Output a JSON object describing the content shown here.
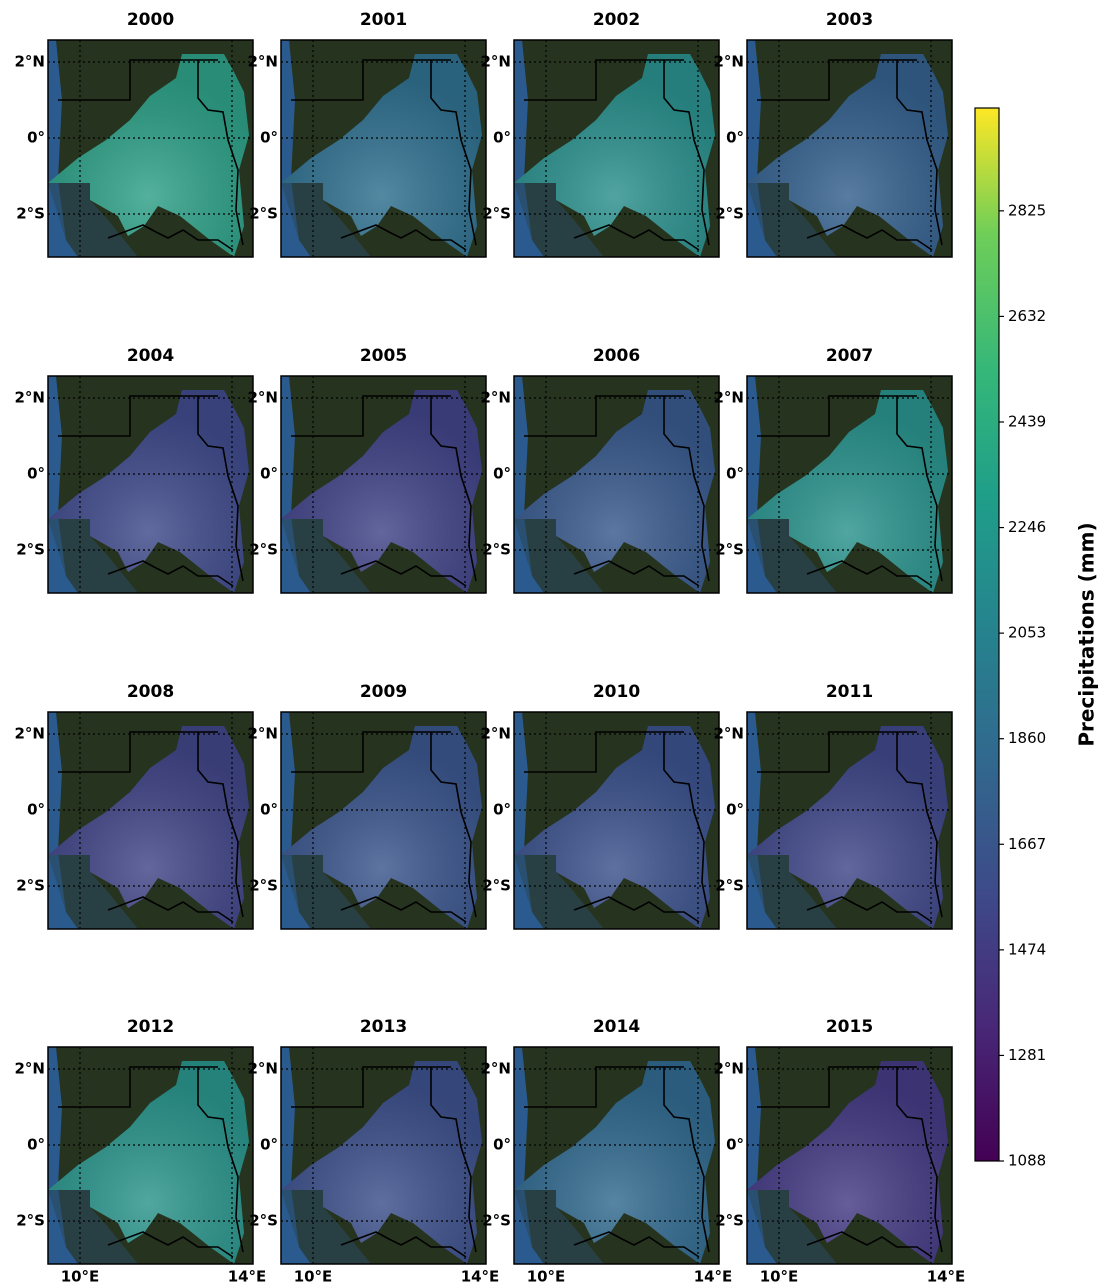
{
  "panels": [
    {
      "title": "2000",
      "color": "#2d9f86"
    },
    {
      "title": "2001",
      "color": "#2f6f8e"
    },
    {
      "title": "2002",
      "color": "#2a8f8c"
    },
    {
      "title": "2003",
      "color": "#34608d"
    },
    {
      "title": "2004",
      "color": "#3f4a8a"
    },
    {
      "title": "2005",
      "color": "#414387"
    },
    {
      "title": "2006",
      "color": "#38598c"
    },
    {
      "title": "2007",
      "color": "#2a928c"
    },
    {
      "title": "2008",
      "color": "#414586"
    },
    {
      "title": "2009",
      "color": "#3a558c"
    },
    {
      "title": "2010",
      "color": "#3b518b"
    },
    {
      "title": "2011",
      "color": "#3f4788"
    },
    {
      "title": "2012",
      "color": "#2a948b"
    },
    {
      "title": "2013",
      "color": "#3c4f8a"
    },
    {
      "title": "2014",
      "color": "#31698e"
    },
    {
      "title": "2015",
      "color": "#443a83"
    }
  ],
  "lat_ticks": [
    "2°N",
    "0°",
    "2°S"
  ],
  "lon_ticks": [
    "10°E",
    "14°E"
  ],
  "colorbar": {
    "label": "Precipitations (mm)",
    "lim": [
      1088,
      3013
    ],
    "ticks": [
      1088,
      1281,
      1474,
      1667,
      1860,
      2053,
      2246,
      2439,
      2632,
      2825
    ],
    "colormap": "viridis"
  }
}
